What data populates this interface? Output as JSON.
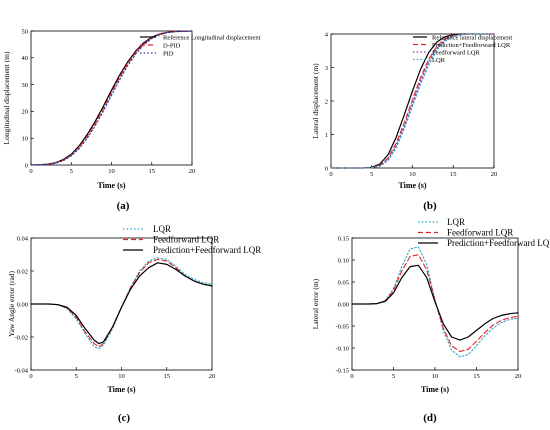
{
  "chart_data": [
    {
      "type": "line",
      "panel_label": "(a)",
      "xlabel": "Time (s)",
      "ylabel": "Longitudinal displacement (m)",
      "xlim": [
        0,
        20
      ],
      "ylim": [
        0,
        50
      ],
      "xticks": [
        0,
        5,
        10,
        15,
        20
      ],
      "yticks": [
        0,
        10,
        20,
        30,
        40,
        50
      ],
      "legend_position": "top-right",
      "x": [
        0,
        1,
        2,
        3,
        4,
        5,
        6,
        7,
        8,
        9,
        10,
        11,
        12,
        13,
        14,
        15,
        16,
        17,
        18,
        19,
        20
      ],
      "series": [
        {
          "name": "Reference Longitudinal displacement",
          "color": "#000000",
          "dash": "solid",
          "values": [
            0,
            0.1,
            0.3,
            0.8,
            2.0,
            4.0,
            7.2,
            11.4,
            16.4,
            22.0,
            27.9,
            33.5,
            38.4,
            42.5,
            45.6,
            47.7,
            48.9,
            49.5,
            49.8,
            49.9,
            50.0
          ]
        },
        {
          "name": "D-PID",
          "color": "#e8222a",
          "dash": "dash",
          "values": [
            0,
            0.1,
            0.3,
            0.7,
            1.8,
            3.7,
            6.7,
            10.7,
            15.6,
            21.1,
            27.0,
            32.7,
            37.8,
            42.0,
            45.2,
            47.5,
            48.8,
            49.5,
            49.8,
            49.9,
            50.0
          ]
        },
        {
          "name": "PID",
          "color": "#1f3ea8",
          "dash": "dot",
          "values": [
            0,
            0.1,
            0.2,
            0.6,
            1.6,
            3.4,
            6.2,
            10.0,
            14.8,
            20.2,
            26.0,
            31.8,
            37.0,
            41.4,
            44.8,
            47.2,
            48.6,
            49.4,
            49.8,
            49.9,
            50.0
          ]
        }
      ]
    },
    {
      "type": "line",
      "panel_label": "(b)",
      "xlabel": "Time (s)",
      "ylabel": "Lateral displacement (m)",
      "xlim": [
        0,
        20
      ],
      "ylim": [
        0,
        4
      ],
      "xticks": [
        0,
        5,
        10,
        15,
        20
      ],
      "yticks": [
        0,
        1,
        2,
        3,
        4
      ],
      "legend_position": "top-right",
      "x": [
        0,
        2,
        4,
        5,
        6,
        7,
        8,
        9,
        10,
        11,
        12,
        13,
        14,
        15,
        16,
        17,
        18,
        20
      ],
      "series": [
        {
          "name": "Reference lateral displacement",
          "color": "#000000",
          "dash": "solid",
          "values": [
            0,
            0,
            0,
            0.02,
            0.12,
            0.4,
            0.92,
            1.6,
            2.3,
            2.95,
            3.45,
            3.76,
            3.92,
            3.98,
            4.0,
            4.0,
            4.0,
            4.0
          ]
        },
        {
          "name": "Prediction+Feedforward LQR",
          "color": "#e8222a",
          "dash": "dash",
          "values": [
            0,
            0,
            0,
            0.01,
            0.08,
            0.3,
            0.74,
            1.36,
            2.04,
            2.7,
            3.25,
            3.64,
            3.86,
            3.96,
            3.99,
            4.0,
            4.0,
            4.0
          ]
        },
        {
          "name": "Feedforward LQR",
          "color": "#7a3fb0",
          "dash": "dot",
          "values": [
            0,
            0,
            0,
            0.01,
            0.06,
            0.25,
            0.66,
            1.26,
            1.93,
            2.6,
            3.17,
            3.58,
            3.82,
            3.94,
            3.99,
            4.0,
            4.0,
            4.0
          ]
        },
        {
          "name": "LQR",
          "color": "#26a8c8",
          "dash": "dot",
          "values": [
            0,
            0,
            0,
            0.01,
            0.05,
            0.22,
            0.6,
            1.18,
            1.84,
            2.5,
            3.08,
            3.52,
            3.79,
            3.93,
            3.98,
            4.0,
            4.0,
            4.0
          ]
        }
      ]
    },
    {
      "type": "line",
      "panel_label": "(c)",
      "xlabel": "Time (s)",
      "ylabel": "Yaw Angle error (rad)",
      "xlim": [
        0,
        20
      ],
      "ylim": [
        -0.04,
        0.04
      ],
      "xticks": [
        0,
        5,
        10,
        15,
        20
      ],
      "yticks": [
        -0.04,
        -0.02,
        0.0,
        0.02,
        0.04
      ],
      "ytick_labels": [
        "-0.04",
        "-0.02",
        "0.00",
        "0.02",
        "0.04"
      ],
      "legend_position": "top-center",
      "x": [
        0,
        2,
        3,
        4,
        5,
        6,
        7,
        7.5,
        8,
        9,
        10,
        11,
        12,
        13,
        14,
        15,
        16,
        17,
        18,
        19,
        20
      ],
      "series": [
        {
          "name": "LQR",
          "color": "#26a8c8",
          "dash": "dot",
          "values": [
            0,
            0,
            -0.0005,
            -0.003,
            -0.009,
            -0.018,
            -0.026,
            -0.027,
            -0.025,
            -0.015,
            -0.002,
            0.01,
            0.02,
            0.026,
            0.028,
            0.027,
            0.023,
            0.018,
            0.015,
            0.013,
            0.012
          ]
        },
        {
          "name": "Feedforward LQR",
          "color": "#e8222a",
          "dash": "dash",
          "values": [
            0,
            0,
            -0.0004,
            -0.0025,
            -0.008,
            -0.017,
            -0.024,
            -0.026,
            -0.024,
            -0.014,
            -0.002,
            0.01,
            0.019,
            0.025,
            0.027,
            0.026,
            0.022,
            0.017,
            0.014,
            0.012,
            0.011
          ]
        },
        {
          "name": "Prediction+Feedforward LQR",
          "color": "#000000",
          "dash": "solid",
          "values": [
            0,
            0,
            -0.0004,
            -0.002,
            -0.007,
            -0.015,
            -0.022,
            -0.024,
            -0.023,
            -0.014,
            -0.002,
            0.009,
            0.017,
            0.022,
            0.025,
            0.024,
            0.021,
            0.017,
            0.014,
            0.012,
            0.011
          ]
        }
      ]
    },
    {
      "type": "line",
      "panel_label": "(d)",
      "xlabel": "Time (s)",
      "ylabel": "Lateral error (m)",
      "xlim": [
        0,
        20
      ],
      "ylim": [
        -0.15,
        0.15
      ],
      "xticks": [
        0,
        5,
        10,
        15,
        20
      ],
      "yticks": [
        -0.15,
        -0.1,
        -0.05,
        0.0,
        0.05,
        0.1,
        0.15
      ],
      "ytick_labels": [
        "-0.15",
        "-0.10",
        "-0.05",
        "0.00",
        "0.05",
        "0.10",
        "0.15"
      ],
      "legend_position": "top-right",
      "x": [
        0,
        2,
        3,
        4,
        5,
        6,
        7,
        8,
        9,
        10,
        11,
        12,
        13,
        14,
        15,
        16,
        17,
        18,
        19,
        20
      ],
      "series": [
        {
          "name": "LQR",
          "color": "#26a8c8",
          "dash": "dot",
          "values": [
            0,
            0,
            0.001,
            0.008,
            0.035,
            0.085,
            0.125,
            0.13,
            0.09,
            0.01,
            -0.06,
            -0.105,
            -0.12,
            -0.115,
            -0.095,
            -0.072,
            -0.055,
            -0.042,
            -0.035,
            -0.032
          ]
        },
        {
          "name": "Feedforward LQR",
          "color": "#e8222a",
          "dash": "dash",
          "values": [
            0,
            0,
            0.001,
            0.007,
            0.03,
            0.075,
            0.108,
            0.112,
            0.078,
            0.008,
            -0.055,
            -0.095,
            -0.108,
            -0.103,
            -0.085,
            -0.065,
            -0.048,
            -0.037,
            -0.031,
            -0.028
          ]
        },
        {
          "name": "Prediction+Feedforward LQR",
          "color": "#000000",
          "dash": "solid",
          "values": [
            0,
            0,
            0.001,
            0.006,
            0.025,
            0.06,
            0.085,
            0.088,
            0.06,
            0.005,
            -0.045,
            -0.075,
            -0.082,
            -0.075,
            -0.06,
            -0.045,
            -0.033,
            -0.026,
            -0.022,
            -0.02
          ]
        }
      ]
    }
  ]
}
